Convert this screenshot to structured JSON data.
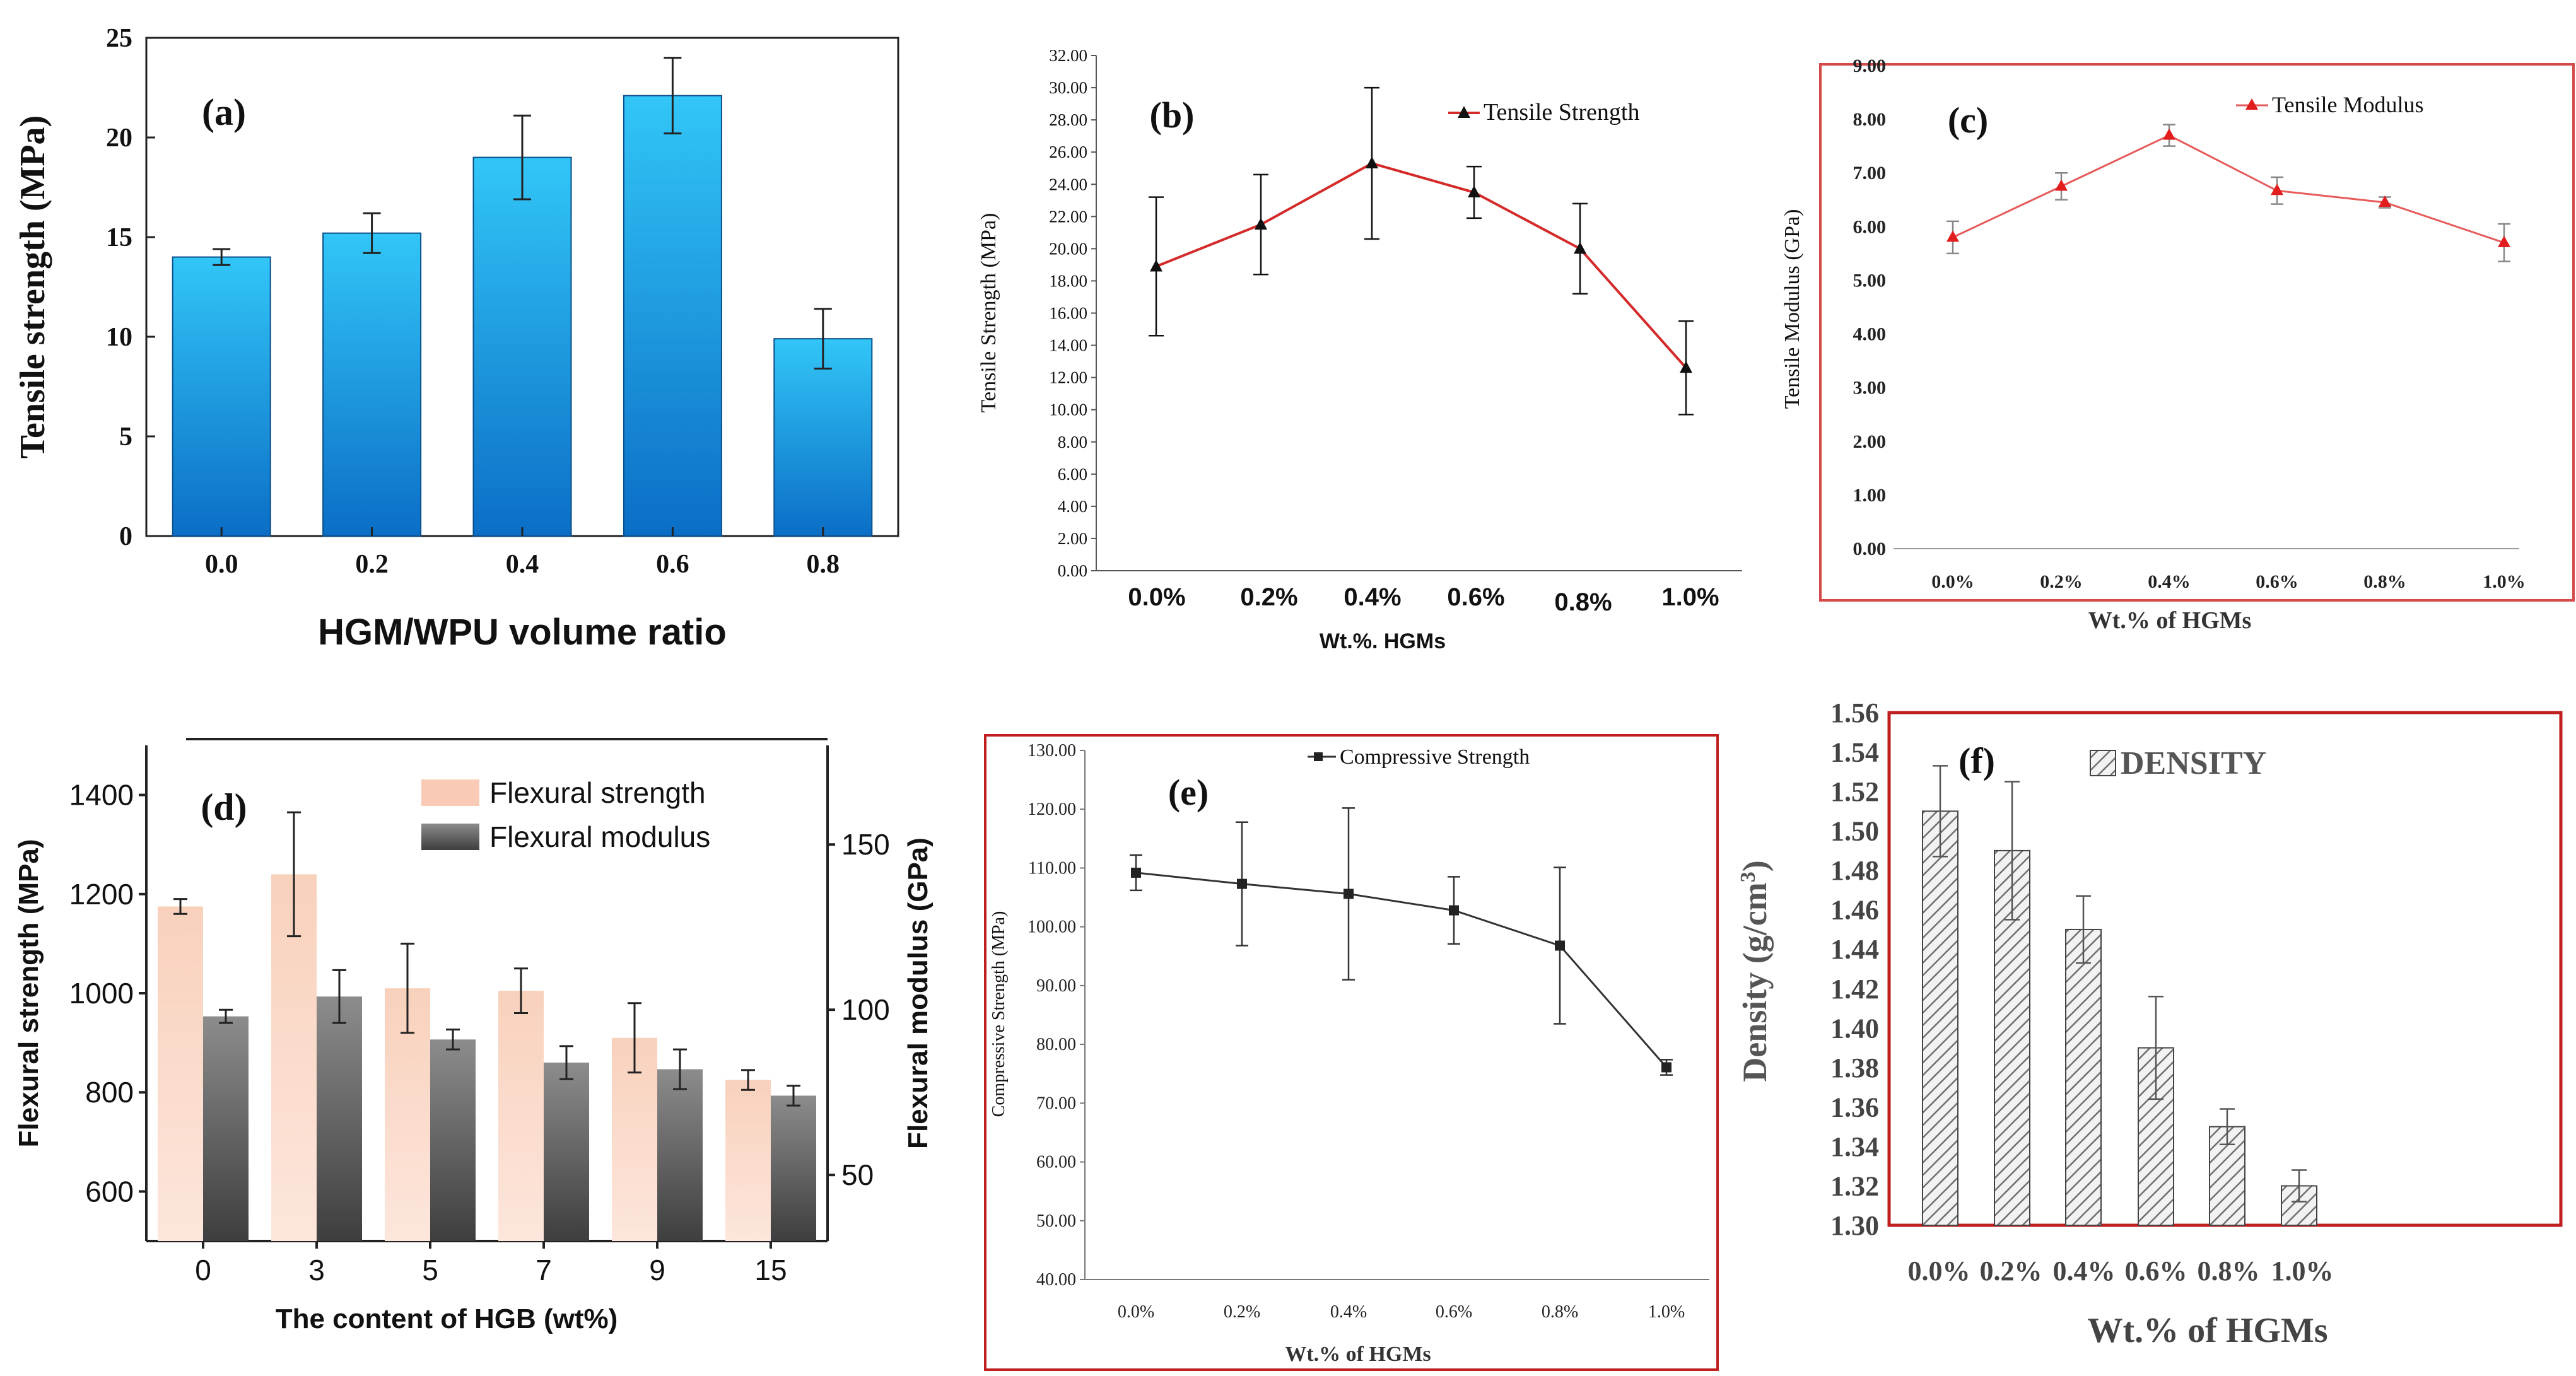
{
  "chart_data": [
    {
      "panel": "(a)",
      "type": "bar",
      "categories": [
        "0.0",
        "0.2",
        "0.4",
        "0.6",
        "0.8"
      ],
      "values": [
        14.0,
        15.2,
        19.0,
        22.1,
        9.9
      ],
      "errors": [
        0.4,
        1.0,
        2.1,
        1.9,
        1.5
      ],
      "title": "",
      "xlabel": "HGM/WPU volume ratio",
      "ylabel": "Tensile strength (MPa)",
      "ylim": [
        0,
        25
      ],
      "yticks": [
        "0",
        "5",
        "10",
        "15",
        "20",
        "25"
      ],
      "legend": [],
      "colors": {
        "bar_top": "#2ec2f5",
        "bar_bottom": "#0a6fc8",
        "error": "#222222"
      }
    },
    {
      "panel": "(b)",
      "type": "line",
      "categories": [
        "0.0%",
        "0.2%",
        "0.4%",
        "0.6%",
        "0.8%",
        "1.0%"
      ],
      "series": [
        {
          "name": "Tensile Strength",
          "values": [
            18.9,
            21.5,
            25.3,
            23.5,
            20.0,
            12.6
          ],
          "errors": [
            4.3,
            3.1,
            4.7,
            1.6,
            2.8,
            2.9
          ]
        }
      ],
      "xlabel": "Wt.%. HGMs",
      "ylabel": "Tensile Strength (MPa)",
      "ylim": [
        0,
        32
      ],
      "yticks": [
        "0.00",
        "2.00",
        "4.00",
        "6.00",
        "8.00",
        "10.00",
        "12.00",
        "14.00",
        "16.00",
        "18.00",
        "20.00",
        "22.00",
        "24.00",
        "26.00",
        "28.00",
        "30.00",
        "32.00"
      ],
      "legend_position": "top-right",
      "colors": {
        "line": "#d42a2a",
        "marker": "#111111"
      }
    },
    {
      "panel": "(c)",
      "type": "line",
      "categories": [
        "0.0%",
        "0.2%",
        "0.4%",
        "0.6%",
        "0.8%",
        "1.0%"
      ],
      "series": [
        {
          "name": "Tensile Modulus",
          "values": [
            5.8,
            6.75,
            7.7,
            6.67,
            6.45,
            5.7
          ],
          "errors": [
            0.3,
            0.25,
            0.2,
            0.25,
            0.1,
            0.35
          ]
        }
      ],
      "xlabel": "Wt.% of HGMs",
      "ylabel": "Tensile Modulus (GPa)",
      "ylim": [
        0,
        9
      ],
      "yticks": [
        "0.00",
        "1.00",
        "2.00",
        "3.00",
        "4.00",
        "5.00",
        "6.00",
        "7.00",
        "8.00",
        "9.00"
      ],
      "legend_position": "top-right",
      "colors": {
        "line": "#e65a5a",
        "marker": "#e11d1d",
        "frame": "#d44a4a"
      }
    },
    {
      "panel": "(d)",
      "type": "bar",
      "categories": [
        "0",
        "3",
        "5",
        "7",
        "9",
        "15"
      ],
      "series": [
        {
          "name": "Flexural strength",
          "axis": "left",
          "values": [
            1175,
            1240,
            1010,
            1005,
            910,
            825
          ],
          "errors": [
            15,
            125,
            90,
            45,
            70,
            20
          ]
        },
        {
          "name": "Flexural modulus",
          "axis": "right",
          "values": [
            98,
            104,
            91,
            84,
            82,
            74
          ],
          "errors": [
            2,
            8,
            3,
            5,
            6,
            3
          ]
        }
      ],
      "xlabel": "The content of HGB (wt%)",
      "ylabel": "Flexural strength (MPa)",
      "ylabel_right": "Flexural modulus (GPa)",
      "ylim": [
        500,
        1500
      ],
      "ylim_right": [
        30,
        180
      ],
      "yticks": [
        "600",
        "800",
        "1000",
        "1200",
        "1400"
      ],
      "yticks_right": [
        "50",
        "100",
        "150"
      ],
      "legend_position": "top-right",
      "colors": {
        "strength": "#f9cbb6",
        "modulus": "#8a8a8a"
      }
    },
    {
      "panel": "(e)",
      "type": "line",
      "categories": [
        "0.0%",
        "0.2%",
        "0.4%",
        "0.6%",
        "0.8%",
        "1.0%"
      ],
      "series": [
        {
          "name": "Compressive Strength",
          "values": [
            109.2,
            107.3,
            105.6,
            102.8,
            96.8,
            76.1
          ],
          "errors": [
            3.0,
            10.5,
            14.6,
            5.7,
            13.3,
            1.3
          ]
        }
      ],
      "xlabel": "Wt.% of HGMs",
      "ylabel": "Compressive Strength (MPa)",
      "ylim": [
        40,
        130
      ],
      "yticks": [
        "40.00",
        "50.00",
        "60.00",
        "70.00",
        "80.00",
        "90.00",
        "100.00",
        "110.00",
        "120.00",
        "130.00"
      ],
      "legend_position": "top-right",
      "colors": {
        "line": "#333333",
        "frame": "#c01f1f"
      }
    },
    {
      "panel": "(f)",
      "type": "bar",
      "categories": [
        "0.0%",
        "0.2%",
        "0.4%",
        "0.6%",
        "0.8%",
        "1.0%"
      ],
      "series": [
        {
          "name": "DENSITY",
          "values": [
            1.51,
            1.49,
            1.45,
            1.39,
            1.35,
            1.32
          ],
          "errors": [
            0.023,
            0.035,
            0.017,
            0.026,
            0.009,
            0.008
          ]
        }
      ],
      "xlabel": "Wt.% of HGMs",
      "ylabel": "Density (g/cm",
      "ylabel_sup": "3",
      "ylabel_close": ")",
      "ylim": [
        1.3,
        1.56
      ],
      "yticks": [
        "1.30",
        "1.32",
        "1.34",
        "1.36",
        "1.38",
        "1.40",
        "1.42",
        "1.44",
        "1.46",
        "1.48",
        "1.50",
        "1.52",
        "1.54",
        "1.56"
      ],
      "legend_position": "top-center",
      "colors": {
        "hatch": "#777777",
        "frame": "#c01f1f"
      }
    }
  ]
}
